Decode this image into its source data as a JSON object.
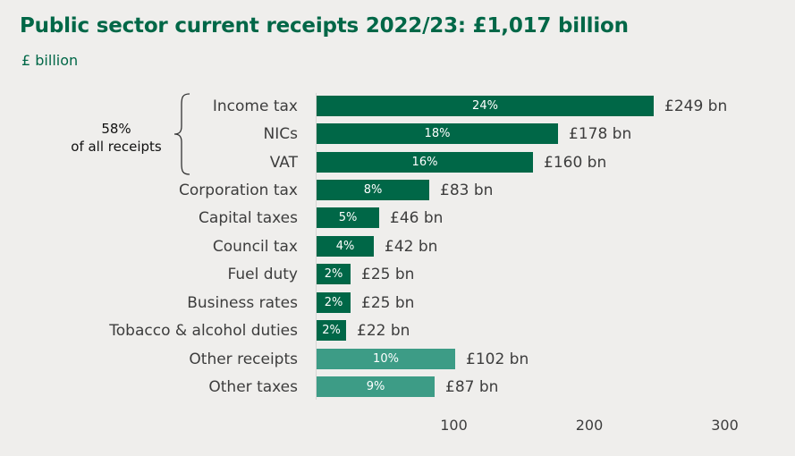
{
  "title": "Public sector current receipts 2022/23: £1,017 billion",
  "subtitle": "£ billion",
  "annotation": {
    "line1": "58%",
    "line2": "of all receipts"
  },
  "colors": {
    "dark": "#006747",
    "light": "#3d9c86",
    "title": "#006747"
  },
  "ticks": [
    "100",
    "200",
    "300"
  ],
  "chart_data": {
    "type": "bar",
    "orientation": "horizontal",
    "title": "Public sector current receipts 2022/23: £1,017 billion",
    "ylabel": "",
    "xlabel": "£ billion",
    "xlim": [
      0,
      300
    ],
    "xticks": [
      100,
      200,
      300
    ],
    "categories": [
      "Income tax",
      "NICs",
      "VAT",
      "Corporation tax",
      "Capital taxes",
      "Council tax",
      "Fuel duty",
      "Business rates",
      "Tobacco & alcohol duties",
      "Other receipts",
      "Other taxes"
    ],
    "values": [
      249,
      178,
      160,
      83,
      46,
      42,
      25,
      25,
      22,
      102,
      87
    ],
    "value_labels": [
      "£249 bn",
      "£178 bn",
      "£160 bn",
      "£83 bn",
      "£46 bn",
      "£42 bn",
      "£25 bn",
      "£25 bn",
      "£22 bn",
      "£102 bn",
      "£87 bn"
    ],
    "percent_labels": [
      "24%",
      "18%",
      "16%",
      "8%",
      "5%",
      "4%",
      "2%",
      "2%",
      "2%",
      "10%",
      "9%"
    ],
    "annotations": [
      "58% of all receipts (Income tax, NICs, VAT)"
    ],
    "grid": false,
    "legend": null
  }
}
